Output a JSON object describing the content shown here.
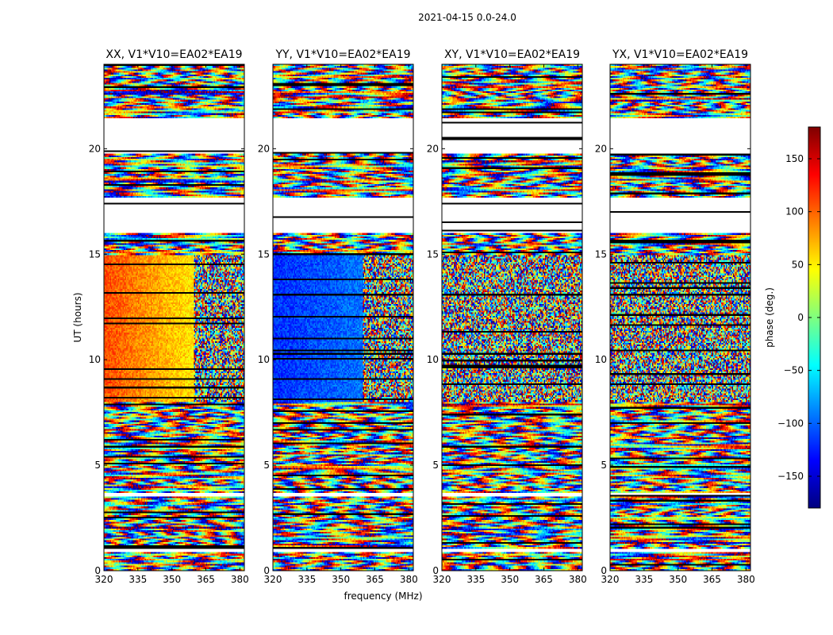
{
  "suptitle": "2021-04-15 0.0-24.0",
  "xlabel": "frequency (MHz)",
  "ylabel": "UT (hours)",
  "colorbar": {
    "label": "phase (deg.)",
    "ticks": [
      150,
      100,
      50,
      0,
      -50,
      -100,
      -150
    ],
    "tick_labels": [
      "150",
      "100",
      "50",
      "0",
      "−50",
      "−100",
      "−150"
    ],
    "range": [
      -180,
      180
    ],
    "colormap": "jet",
    "colors": [
      "#00007f",
      "#0000ff",
      "#007fff",
      "#00ffff",
      "#7fff7f",
      "#ffff00",
      "#ff7f00",
      "#ff0000",
      "#7f0000"
    ]
  },
  "chart_data": [
    {
      "type": "heatmap",
      "title": "XX, V1*V10=EA02*EA19",
      "xlim": [
        320,
        382
      ],
      "ylim": [
        0,
        24
      ],
      "xticks": [
        320,
        335,
        350,
        365,
        380
      ],
      "xtick_labels": [
        "320",
        "335",
        "350",
        "365",
        "380"
      ],
      "yticks": [
        0,
        5,
        10,
        15,
        20
      ],
      "ytick_labels": [
        "0",
        "5",
        "10",
        "15",
        "20"
      ],
      "blank_ut_ranges": [
        [
          0.85,
          1.0
        ],
        [
          3.5,
          3.65
        ],
        [
          16.0,
          17.7
        ],
        [
          19.8,
          21.4
        ]
      ],
      "dominant_phase_ut_8_15": 110
    },
    {
      "type": "heatmap",
      "title": "YY, V1*V10=EA02*EA19",
      "xlim": [
        320,
        382
      ],
      "ylim": [
        0,
        24
      ],
      "xticks": [
        320,
        335,
        350,
        365,
        380
      ],
      "xtick_labels": [
        "320",
        "335",
        "350",
        "365",
        "380"
      ],
      "yticks": [
        0,
        5,
        10,
        15,
        20
      ],
      "ytick_labels": [
        "0",
        "5",
        "10",
        "15",
        "20"
      ],
      "blank_ut_ranges": [
        [
          0.85,
          1.0
        ],
        [
          3.5,
          3.65
        ],
        [
          16.0,
          17.7
        ],
        [
          19.8,
          21.4
        ]
      ],
      "dominant_phase_ut_8_15": -120
    },
    {
      "type": "heatmap",
      "title": "XY, V1*V10=EA02*EA19",
      "xlim": [
        320,
        382
      ],
      "ylim": [
        0,
        24
      ],
      "xticks": [
        320,
        335,
        350,
        365,
        380
      ],
      "xtick_labels": [
        "320",
        "335",
        "350",
        "365",
        "380"
      ],
      "yticks": [
        0,
        5,
        10,
        15,
        20
      ],
      "ytick_labels": [
        "0",
        "5",
        "10",
        "15",
        "20"
      ],
      "blank_ut_ranges": [
        [
          0.85,
          1.0
        ],
        [
          3.5,
          3.65
        ],
        [
          16.0,
          17.7
        ],
        [
          19.8,
          21.4
        ]
      ],
      "dominant_phase_ut_8_15": null
    },
    {
      "type": "heatmap",
      "title": "YX, V1*V10=EA02*EA19",
      "xlim": [
        320,
        382
      ],
      "ylim": [
        0,
        24
      ],
      "xticks": [
        320,
        335,
        350,
        365,
        380
      ],
      "xtick_labels": [
        "320",
        "335",
        "350",
        "365",
        "380"
      ],
      "yticks": [
        0,
        5,
        10,
        15,
        20
      ],
      "ytick_labels": [
        "0",
        "5",
        "10",
        "15",
        "20"
      ],
      "blank_ut_ranges": [
        [
          0.85,
          1.0
        ],
        [
          3.5,
          3.65
        ],
        [
          16.0,
          17.7
        ],
        [
          19.8,
          21.4
        ]
      ],
      "dominant_phase_ut_8_15": null
    }
  ]
}
